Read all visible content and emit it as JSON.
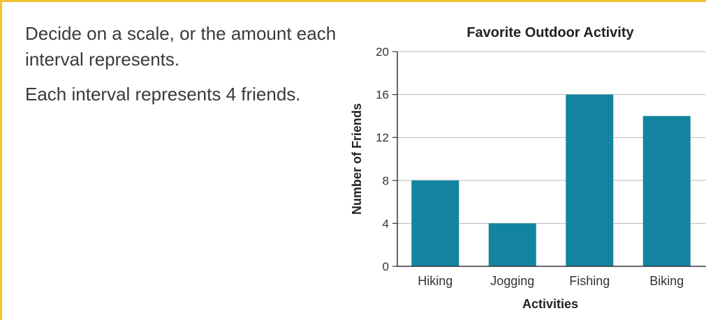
{
  "instruction": {
    "paragraph1": "Decide on a scale, or the amount each interval represents.",
    "paragraph2": "Each interval represents 4 friends."
  },
  "colors": {
    "bar": "#12849f",
    "frame": "#f2c230",
    "grid": "#b9b9b9",
    "axis": "#333333",
    "text": "#3a3a3a"
  },
  "chart_data": {
    "type": "bar",
    "title": "Favorite Outdoor Activity",
    "xlabel": "Activities",
    "ylabel": "Number of Friends",
    "categories": [
      "Hiking",
      "Jogging",
      "Fishing",
      "Biking"
    ],
    "values": [
      8,
      4,
      16,
      14
    ],
    "ylim": [
      0,
      20
    ],
    "yticks": [
      0,
      4,
      8,
      12,
      16,
      20
    ],
    "grid": true
  }
}
